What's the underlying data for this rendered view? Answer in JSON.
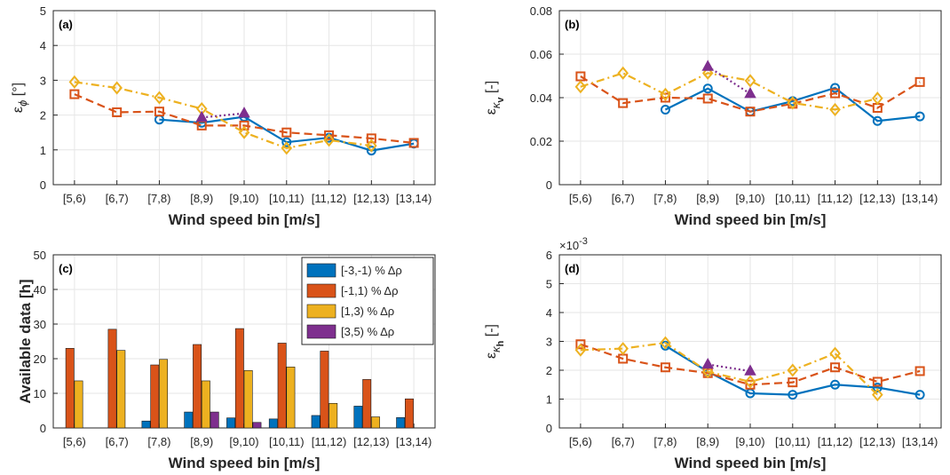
{
  "colors": {
    "series1": "#0072BD",
    "series2": "#D95319",
    "series3": "#EDB120",
    "series4": "#7E2F8E",
    "axis": "#262626",
    "grid": "#e6e6e6"
  },
  "chart_data": [
    {
      "type": "line",
      "panel_label": "(a)",
      "categories": [
        "[5,6)",
        "[6,7)",
        "[7,8)",
        "[8,9)",
        "[9,10)",
        "[10,11)",
        "[11,12)",
        "[12,13)",
        "[13,14)"
      ],
      "xlabel": "Wind speed bin [m/s]",
      "ylabel": "ε",
      "ylabel_sub": "ϕ",
      "ylabel_unit": " [°]",
      "ylim": [
        0,
        5
      ],
      "yticks": [
        "0",
        "1",
        "2",
        "3",
        "4",
        "5"
      ],
      "grid": true,
      "series": [
        {
          "marker": "circle",
          "dash": "solid",
          "values": [
            null,
            null,
            1.87,
            1.78,
            1.95,
            1.22,
            1.35,
            0.98,
            1.18
          ]
        },
        {
          "marker": "square",
          "dash": "dashed",
          "values": [
            2.6,
            2.08,
            2.1,
            1.7,
            1.7,
            1.5,
            1.42,
            1.33,
            1.2
          ]
        },
        {
          "marker": "diamond",
          "dash": "dashdot",
          "values": [
            2.95,
            2.78,
            2.5,
            2.18,
            1.5,
            1.05,
            1.28,
            1.12,
            null
          ]
        },
        {
          "marker": "triangle",
          "dash": "dotted",
          "values": [
            null,
            null,
            null,
            1.93,
            2.05,
            null,
            null,
            null,
            null
          ]
        }
      ]
    },
    {
      "type": "line",
      "panel_label": "(b)",
      "categories": [
        "[5,6)",
        "[6,7)",
        "[7,8)",
        "[8,9)",
        "[9,10)",
        "[10,11)",
        "[11,12)",
        "[12,13)",
        "[13,14)"
      ],
      "xlabel": "Wind speed bin [m/s]",
      "ylabel": "ε",
      "ylabel_sub": "κ",
      "ylabel_subsub": "v",
      "ylabel_unit": " [-]",
      "ylim": [
        0,
        0.08
      ],
      "yticks": [
        "0",
        "0.02",
        "0.04",
        "0.06",
        "0.08"
      ],
      "grid": true,
      "series": [
        {
          "marker": "circle",
          "dash": "solid",
          "values": [
            null,
            null,
            0.0345,
            0.0442,
            0.0336,
            0.0384,
            0.0445,
            0.0293,
            0.0314
          ]
        },
        {
          "marker": "square",
          "dash": "dashed",
          "values": [
            0.0498,
            0.0375,
            0.04,
            0.0396,
            0.0336,
            0.0372,
            0.042,
            0.0353,
            0.0472
          ]
        },
        {
          "marker": "diamond",
          "dash": "dashdot",
          "values": [
            0.045,
            0.0513,
            0.0415,
            0.0513,
            0.0478,
            0.0376,
            0.0345,
            0.0397,
            null
          ]
        },
        {
          "marker": "triangle",
          "dash": "dotted",
          "values": [
            null,
            null,
            null,
            0.0543,
            0.0418,
            null,
            null,
            null,
            null
          ]
        }
      ]
    },
    {
      "type": "bar",
      "panel_label": "(c)",
      "categories": [
        "[5,6)",
        "[6,7)",
        "[7,8)",
        "[8,9)",
        "[9,10)",
        "[10,11)",
        "[11,12)",
        "[12,13)",
        "[13,14)"
      ],
      "xlabel": "Wind speed bin [m/s]",
      "ylabel": "Available data [h]",
      "ylim": [
        0,
        50
      ],
      "yticks": [
        "0",
        "10",
        "20",
        "30",
        "40",
        "50"
      ],
      "grid": true,
      "legend_position": "top-right",
      "series": [
        {
          "name": "[-3,-1) % Δρ",
          "values": [
            0,
            0,
            2.0,
            4.6,
            2.9,
            2.6,
            3.6,
            6.3,
            3.0
          ]
        },
        {
          "name": "[-1,1) % Δρ",
          "values": [
            23.0,
            28.5,
            18.2,
            24.1,
            28.7,
            24.5,
            22.2,
            14.0,
            8.4
          ]
        },
        {
          "name": "[1,3) % Δρ",
          "values": [
            13.6,
            22.4,
            19.8,
            13.6,
            16.6,
            17.6,
            7.1,
            3.2,
            0
          ]
        },
        {
          "name": "[3,5) % Δρ",
          "values": [
            0,
            0,
            0,
            4.6,
            1.6,
            0,
            0,
            0,
            0
          ]
        }
      ]
    },
    {
      "type": "line",
      "panel_label": "(d)",
      "categories": [
        "[5,6)",
        "[6,7)",
        "[7,8)",
        "[8,9)",
        "[9,10)",
        "[10,11)",
        "[11,12)",
        "[12,13)",
        "[13,14)"
      ],
      "xlabel": "Wind speed bin [m/s]",
      "ylabel": "ε",
      "ylabel_sub": "κ",
      "ylabel_subsub": "h",
      "ylabel_unit": " [-]",
      "ylim": [
        0,
        0.006
      ],
      "yticks": [
        "0",
        "1",
        "2",
        "3",
        "4",
        "5",
        "6"
      ],
      "exponent_base": "×10",
      "exponent_power": "-3",
      "grid": true,
      "series": [
        {
          "marker": "circle",
          "dash": "solid",
          "values": [
            null,
            null,
            0.00285,
            0.00195,
            0.0012,
            0.00115,
            0.0015,
            0.0014,
            0.00115
          ]
        },
        {
          "marker": "square",
          "dash": "dashed",
          "values": [
            0.0029,
            0.0024,
            0.0021,
            0.0019,
            0.0015,
            0.00158,
            0.0021,
            0.0016,
            0.00197
          ]
        },
        {
          "marker": "diamond",
          "dash": "dashdot",
          "values": [
            0.0027,
            0.00275,
            0.00295,
            0.00195,
            0.0016,
            0.002,
            0.00258,
            0.00115,
            null
          ]
        },
        {
          "marker": "triangle",
          "dash": "dotted",
          "values": [
            null,
            null,
            null,
            0.0022,
            0.00197,
            null,
            null,
            null,
            null
          ]
        }
      ]
    }
  ]
}
